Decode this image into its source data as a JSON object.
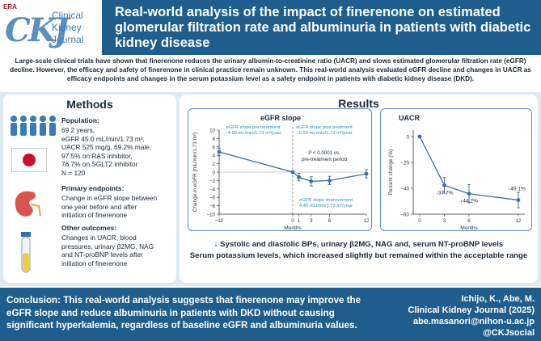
{
  "header": {
    "badge": "ERA",
    "logo_letters": "CKJ",
    "journal_line1": "Clinical",
    "journal_line2": "Kidney",
    "journal_line3": "Journal",
    "title": "Real-world analysis of the impact of finerenone on estimated glomerular filtration rate and albuminuria in patients with diabetic kidney disease"
  },
  "intro": "Large-scale clinical trials have shown that finerenone reduces the urinary albumin-to-creatinine ratio (UACR) and slows estimated glomerular filtration rate (eGFR) decline. However, the efficacy and safety of finerenone in clinical practice remain unknown. This real-world analysis evaluated eGFR decline and changes in UACR as efficacy endpoints and changes in the serum potassium level as a safety endpoint in patients with diabetic kidney disease (DKD).",
  "methods": {
    "title": "Methods",
    "population_head": "Population:",
    "population_lines": [
      "69.2 years,",
      "eGFR 45.0 mL/min/1.73 m²,",
      "UACR 525 mg/g, 69.2% male,",
      "97.5% on RAS inhibitor,",
      "76.7% on SGLT2 inhibitor",
      "N = 120"
    ],
    "primary_head": "Primary endpoints:",
    "primary_lines": [
      "Change in eGFR slope between",
      "one year before and after",
      "initiation of finerenone"
    ],
    "other_head": "Other outcomes:",
    "other_lines": [
      "Changes in UACR, blood",
      "pressures, urinary β2MG, NAG",
      "and NT-proBNP levels after",
      "initiation of finerenone"
    ]
  },
  "results": {
    "title": "Results",
    "summary_1": "↓ Systolic and diastolic BPs, urinary β2MG, NAG and, serum NT-proBNP levels",
    "summary_2": "Serum potassium levels, which increased slightly but remained within the acceptable range"
  },
  "chart_data": [
    {
      "type": "line",
      "title": "eGFR slope",
      "xlabel": "Months",
      "ylabel": "Change in eGFR (mL/min/1.73 m²)",
      "xlim": [
        -12,
        12
      ],
      "ylim": [
        -10,
        10
      ],
      "x_ticks": [
        -12,
        0,
        1,
        3,
        6,
        12
      ],
      "y_ticks": [
        -10,
        -8,
        -6,
        -4,
        -2,
        0,
        2,
        4,
        6,
        8,
        10
      ],
      "x": [
        -12,
        0,
        1,
        3,
        6,
        12
      ],
      "y": [
        4.8,
        0,
        -1.2,
        -2.2,
        -2.0,
        -0.4
      ],
      "err": [
        0.9,
        0,
        0.9,
        1.1,
        1.0,
        1.0
      ],
      "annotations": {
        "pre_title": "eGFR slope pre treatment",
        "pre_value": "−4.99 mL/min/1.73 m²/year",
        "post_title": "eGFR slope post treatment",
        "post_value": "−0.59 mL/min/1.73 m²/year",
        "p_line1": "P < 0.0001 vs.",
        "p_line2": "pre-treatment period",
        "imp_title": "eGFR slope improvement",
        "imp_value": "4.40 mL/min/1.73 m²/year"
      }
    },
    {
      "type": "line",
      "title": "UACR",
      "xlabel": "Months",
      "ylabel": "Percent change (%)",
      "xlim": [
        0,
        12
      ],
      "ylim": [
        -60,
        0
      ],
      "x_ticks": [
        0,
        3,
        6,
        12
      ],
      "y_ticks": [
        -60,
        -40,
        -20,
        0
      ],
      "x": [
        0,
        3,
        6,
        12
      ],
      "y": [
        0,
        -37.7,
        -44.2,
        -49.1
      ],
      "err": [
        0,
        6,
        7,
        6
      ],
      "data_labels": [
        "",
        "↓37.7%",
        "↓44.2%",
        "↓49.1%"
      ]
    }
  ],
  "footer": {
    "conclusion": "Conclusion: This real-world analysis suggests that finerenone may improve the eGFR slope and reduce albuminuria in patients with DKD without causing significant hyperkalemia, regardless of baseline eGFR and albuminuria values.",
    "cite_authors": "Ichijo, K., Abe, M.",
    "cite_journal": "Clinical Kidney Journal (2025)",
    "cite_email": "abe.masanori@nihon-u.ac.jp",
    "cite_social": "@CKJsocial"
  },
  "colors": {
    "header_bg": "#1f5e8c",
    "panel_bg": "#dfe9f2",
    "line": "#3b6ea5",
    "accent_text": "#2a8fc4",
    "arrow": "#1a2a3a"
  }
}
